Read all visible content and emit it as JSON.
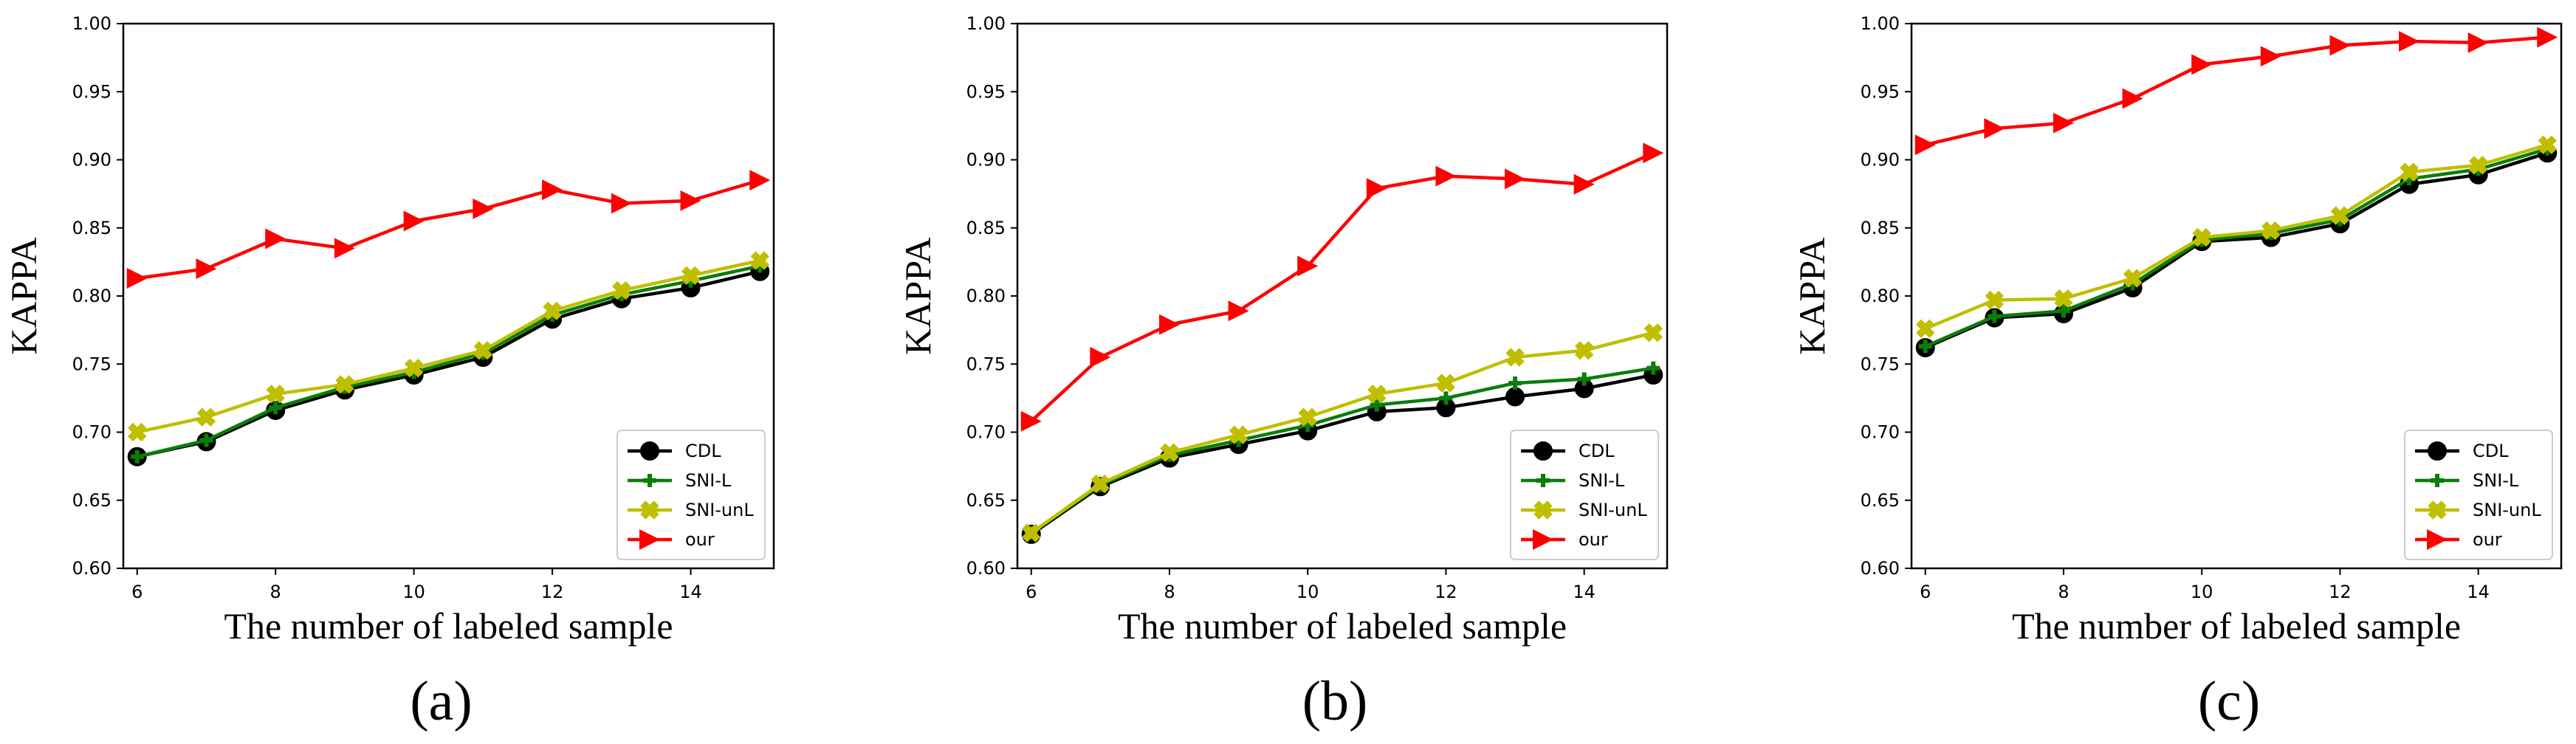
{
  "chart_data": [
    {
      "type": "line",
      "panel_label": "(a)",
      "xlabel": "The number of labeled sample",
      "ylabel": "KAPPA",
      "xlim": [
        5.8,
        15.2
      ],
      "ylim": [
        0.6,
        1.0
      ],
      "xticks": [
        "6",
        "8",
        "10",
        "12",
        "14"
      ],
      "yticks": [
        "0.60",
        "0.65",
        "0.70",
        "0.75",
        "0.80",
        "0.85",
        "0.90",
        "0.95",
        "1.00"
      ],
      "grid": false,
      "legend_position": "bottom-right",
      "x": [
        6,
        7,
        8,
        9,
        10,
        11,
        12,
        13,
        14,
        15
      ],
      "series": [
        {
          "name": "CDL",
          "color": "#000000",
          "marker": "circle",
          "values": [
            0.682,
            0.693,
            0.716,
            0.731,
            0.742,
            0.755,
            0.783,
            0.798,
            0.806,
            0.818
          ]
        },
        {
          "name": "SNI-L",
          "color": "#0a7d0a",
          "marker": "plus",
          "values": [
            0.682,
            0.694,
            0.718,
            0.733,
            0.744,
            0.758,
            0.786,
            0.801,
            0.811,
            0.822
          ]
        },
        {
          "name": "SNI-unL",
          "color": "#bfbf00",
          "marker": "x",
          "values": [
            0.7,
            0.711,
            0.728,
            0.735,
            0.747,
            0.76,
            0.789,
            0.804,
            0.815,
            0.826
          ]
        },
        {
          "name": "our",
          "color": "#ff0000",
          "marker": "triangle-right",
          "values": [
            0.813,
            0.82,
            0.842,
            0.835,
            0.855,
            0.864,
            0.878,
            0.868,
            0.87,
            0.885
          ]
        }
      ]
    },
    {
      "type": "line",
      "panel_label": "(b)",
      "xlabel": "The number of labeled sample",
      "ylabel": "KAPPA",
      "xlim": [
        5.8,
        15.2
      ],
      "ylim": [
        0.6,
        1.0
      ],
      "xticks": [
        "6",
        "8",
        "10",
        "12",
        "14"
      ],
      "yticks": [
        "0.60",
        "0.65",
        "0.70",
        "0.75",
        "0.80",
        "0.85",
        "0.90",
        "0.95",
        "1.00"
      ],
      "grid": false,
      "legend_position": "bottom-right",
      "x": [
        6,
        7,
        8,
        9,
        10,
        11,
        12,
        13,
        14,
        15
      ],
      "series": [
        {
          "name": "CDL",
          "color": "#000000",
          "marker": "circle",
          "values": [
            0.625,
            0.66,
            0.681,
            0.691,
            0.701,
            0.715,
            0.718,
            0.726,
            0.732,
            0.742
          ]
        },
        {
          "name": "SNI-L",
          "color": "#0a7d0a",
          "marker": "plus",
          "values": [
            0.626,
            0.661,
            0.683,
            0.694,
            0.705,
            0.72,
            0.725,
            0.736,
            0.739,
            0.747
          ]
        },
        {
          "name": "SNI-unL",
          "color": "#bfbf00",
          "marker": "x",
          "values": [
            0.626,
            0.662,
            0.685,
            0.698,
            0.711,
            0.728,
            0.736,
            0.755,
            0.76,
            0.773
          ]
        },
        {
          "name": "our",
          "color": "#ff0000",
          "marker": "triangle-right",
          "values": [
            0.708,
            0.755,
            0.779,
            0.789,
            0.822,
            0.879,
            0.888,
            0.886,
            0.882,
            0.905
          ]
        }
      ]
    },
    {
      "type": "line",
      "panel_label": "(c)",
      "xlabel": "The number of labeled sample",
      "ylabel": "KAPPA",
      "xlim": [
        5.8,
        15.2
      ],
      "ylim": [
        0.6,
        1.0
      ],
      "xticks": [
        "6",
        "8",
        "10",
        "12",
        "14"
      ],
      "yticks": [
        "0.60",
        "0.65",
        "0.70",
        "0.75",
        "0.80",
        "0.85",
        "0.90",
        "0.95",
        "1.00"
      ],
      "grid": false,
      "legend_position": "bottom-right",
      "x": [
        6,
        7,
        8,
        9,
        10,
        11,
        12,
        13,
        14,
        15
      ],
      "series": [
        {
          "name": "CDL",
          "color": "#000000",
          "marker": "circle",
          "values": [
            0.762,
            0.784,
            0.787,
            0.806,
            0.84,
            0.843,
            0.853,
            0.882,
            0.889,
            0.905
          ]
        },
        {
          "name": "SNI-L",
          "color": "#0a7d0a",
          "marker": "plus",
          "values": [
            0.763,
            0.785,
            0.789,
            0.809,
            0.841,
            0.846,
            0.856,
            0.886,
            0.893,
            0.908
          ]
        },
        {
          "name": "SNI-unL",
          "color": "#bfbf00",
          "marker": "x",
          "values": [
            0.776,
            0.797,
            0.798,
            0.813,
            0.843,
            0.848,
            0.859,
            0.891,
            0.896,
            0.911
          ]
        },
        {
          "name": "our",
          "color": "#ff0000",
          "marker": "triangle-right",
          "values": [
            0.911,
            0.923,
            0.927,
            0.945,
            0.97,
            0.976,
            0.984,
            0.987,
            0.986,
            0.99
          ]
        }
      ]
    }
  ]
}
